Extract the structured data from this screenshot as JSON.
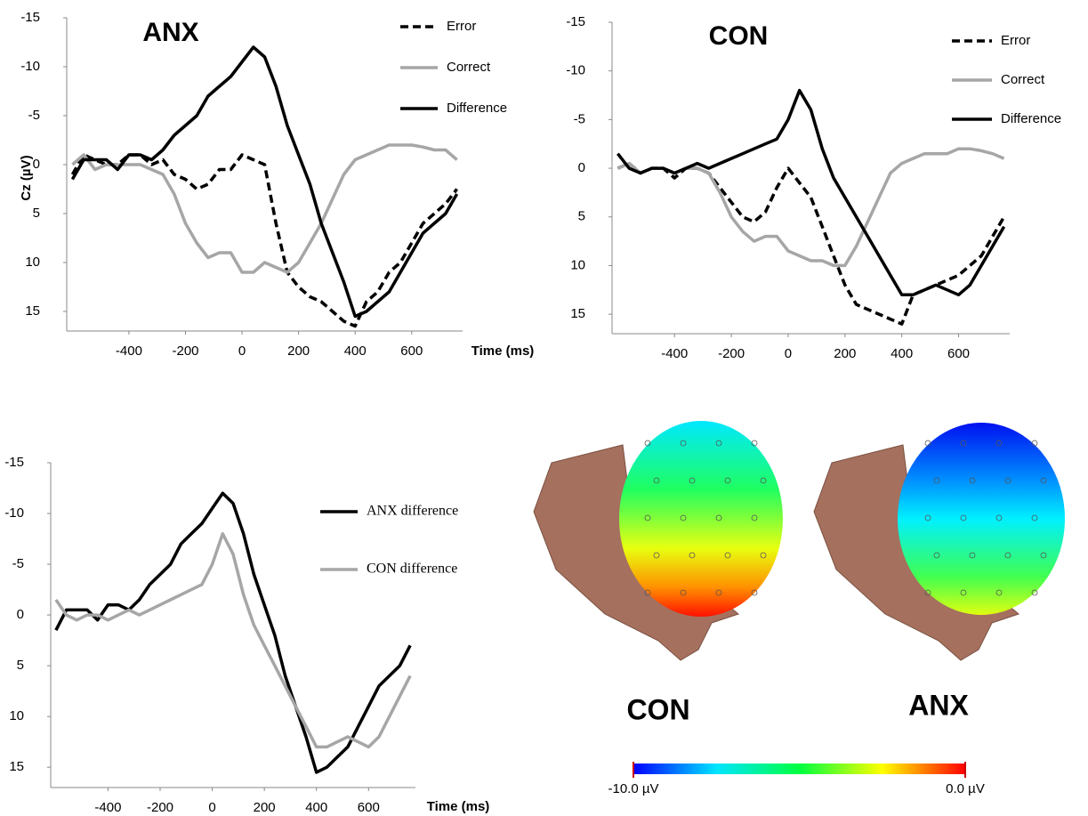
{
  "chart_data": [
    {
      "type": "line",
      "title": "ANX",
      "ylabel": "Cz (µV)",
      "xlabel": "Time (ms)",
      "xlim": [
        -620,
        780
      ],
      "xticks": [
        -400,
        -200,
        0,
        200,
        400,
        600
      ],
      "ylim": [
        17,
        -15
      ],
      "yticks": [
        -15,
        -10,
        -5,
        0,
        5,
        10,
        15
      ],
      "x": [
        -600,
        -560,
        -520,
        -480,
        -440,
        -400,
        -360,
        -320,
        -280,
        -240,
        -200,
        -160,
        -120,
        -80,
        -40,
        0,
        40,
        80,
        120,
        160,
        200,
        240,
        280,
        320,
        360,
        400,
        440,
        480,
        520,
        560,
        600,
        640,
        680,
        720,
        760
      ],
      "series": [
        {
          "name": "Error",
          "color": "#000000",
          "style": "dashed",
          "values": [
            1,
            -1,
            -0.5,
            0,
            0,
            -1,
            -1,
            0,
            -0.5,
            1,
            1.5,
            2.5,
            2,
            0.5,
            0.5,
            -1,
            -0.5,
            0,
            6,
            11,
            12.5,
            13.5,
            14,
            15,
            16,
            16.5,
            14,
            13,
            11,
            10,
            8,
            6,
            5,
            4,
            2.5
          ]
        },
        {
          "name": "Correct",
          "color": "#a6a6a6",
          "style": "solid",
          "values": [
            0,
            -1,
            0.5,
            0,
            0,
            0,
            0,
            0.5,
            1,
            3,
            6,
            8,
            9.5,
            9,
            9,
            11,
            11,
            10,
            10.5,
            11,
            10,
            8,
            6,
            3.5,
            1,
            -0.5,
            -1,
            -1.5,
            -2,
            -2,
            -2,
            -1.8,
            -1.5,
            -1.5,
            -0.5
          ]
        },
        {
          "name": "Difference",
          "color": "#000000",
          "style": "solid",
          "values": [
            1.5,
            -0.5,
            -0.5,
            -0.5,
            0.5,
            -1,
            -1,
            -0.5,
            -1.5,
            -3,
            -4,
            -5,
            -7,
            -8,
            -9,
            -10.5,
            -12,
            -11,
            -8,
            -4,
            -1,
            2,
            6,
            9,
            12,
            15.5,
            15,
            14,
            13,
            11,
            9,
            7,
            6,
            5,
            3
          ]
        }
      ]
    },
    {
      "type": "line",
      "title": "CON",
      "xlim": [
        -620,
        780
      ],
      "xticks": [
        -400,
        -200,
        0,
        200,
        400,
        600
      ],
      "ylim": [
        17,
        -15
      ],
      "yticks": [
        -15,
        -10,
        -5,
        0,
        5,
        10,
        15
      ],
      "x": [
        -600,
        -560,
        -520,
        -480,
        -440,
        -400,
        -360,
        -320,
        -280,
        -240,
        -200,
        -160,
        -120,
        -80,
        -40,
        0,
        40,
        80,
        120,
        160,
        200,
        240,
        280,
        320,
        360,
        400,
        440,
        480,
        520,
        560,
        600,
        640,
        680,
        720,
        760
      ],
      "series": [
        {
          "name": "Error",
          "color": "#000000",
          "style": "dashed",
          "values": [
            0,
            -0.5,
            0.5,
            0,
            0,
            1,
            0,
            0,
            0.5,
            2,
            3.5,
            5,
            5.5,
            4.5,
            2,
            0,
            1.5,
            3,
            6,
            9,
            12,
            14,
            14.5,
            15,
            15.5,
            16,
            13,
            12.5,
            12,
            11.5,
            11,
            10,
            9,
            7,
            5
          ]
        },
        {
          "name": "Correct",
          "color": "#a6a6a6",
          "style": "solid",
          "values": [
            0,
            -0.5,
            0.5,
            0,
            0,
            0.5,
            0,
            0,
            0.5,
            2.5,
            5,
            6.5,
            7.5,
            7,
            7,
            8.5,
            9,
            9.5,
            9.5,
            10,
            10,
            8,
            5.5,
            3,
            0.5,
            -0.5,
            -1,
            -1.5,
            -1.5,
            -1.5,
            -2,
            -2,
            -1.8,
            -1.5,
            -1
          ]
        },
        {
          "name": "Difference",
          "color": "#000000",
          "style": "solid",
          "values": [
            -1.5,
            0,
            0.5,
            0,
            0,
            0.5,
            0,
            -0.5,
            0,
            -0.5,
            -1,
            -1.5,
            -2,
            -2.5,
            -3,
            -5,
            -8,
            -6,
            -2,
            1,
            3,
            5,
            7,
            9,
            11,
            13,
            13,
            12.5,
            12,
            12.5,
            13,
            12,
            10,
            8,
            6
          ]
        }
      ]
    },
    {
      "type": "line",
      "xlabel": "Time (ms)",
      "xlim": [
        -620,
        780
      ],
      "xticks": [
        -400,
        -200,
        0,
        200,
        400,
        600
      ],
      "ylim": [
        17,
        -15
      ],
      "yticks": [
        -15,
        -10,
        -5,
        0,
        5,
        10,
        15
      ],
      "x": [
        -600,
        -560,
        -520,
        -480,
        -440,
        -400,
        -360,
        -320,
        -280,
        -240,
        -200,
        -160,
        -120,
        -80,
        -40,
        0,
        40,
        80,
        120,
        160,
        200,
        240,
        280,
        320,
        360,
        400,
        440,
        480,
        520,
        560,
        600,
        640,
        680,
        720,
        760
      ],
      "series": [
        {
          "name": "ANX difference",
          "color": "#000000",
          "style": "solid",
          "values": [
            1.5,
            -0.5,
            -0.5,
            -0.5,
            0.5,
            -1,
            -1,
            -0.5,
            -1.5,
            -3,
            -4,
            -5,
            -7,
            -8,
            -9,
            -10.5,
            -12,
            -11,
            -8,
            -4,
            -1,
            2,
            6,
            9,
            12,
            15.5,
            15,
            14,
            13,
            11,
            9,
            7,
            6,
            5,
            3
          ]
        },
        {
          "name": "CON difference",
          "color": "#a6a6a6",
          "style": "solid",
          "values": [
            -1.5,
            0,
            0.5,
            0,
            0,
            0.5,
            0,
            -0.5,
            0,
            -0.5,
            -1,
            -1.5,
            -2,
            -2.5,
            -3,
            -5,
            -8,
            -6,
            -2,
            1,
            3,
            5,
            7,
            9,
            11,
            13,
            13,
            12.5,
            12,
            12.5,
            13,
            12,
            10,
            8,
            6
          ]
        }
      ]
    }
  ],
  "topomap": {
    "labels": [
      "CON",
      "ANX"
    ],
    "colorbar": {
      "lim": [
        -10,
        0
      ],
      "colors": [
        "#0000ff",
        "#00e5ff",
        "#00ff40",
        "#ffff00",
        "#ff0000"
      ],
      "ticks": [
        {
          "value": -10,
          "label": "-10.0 µV"
        },
        {
          "value": 0,
          "label": "0.0 µV"
        }
      ]
    }
  }
}
